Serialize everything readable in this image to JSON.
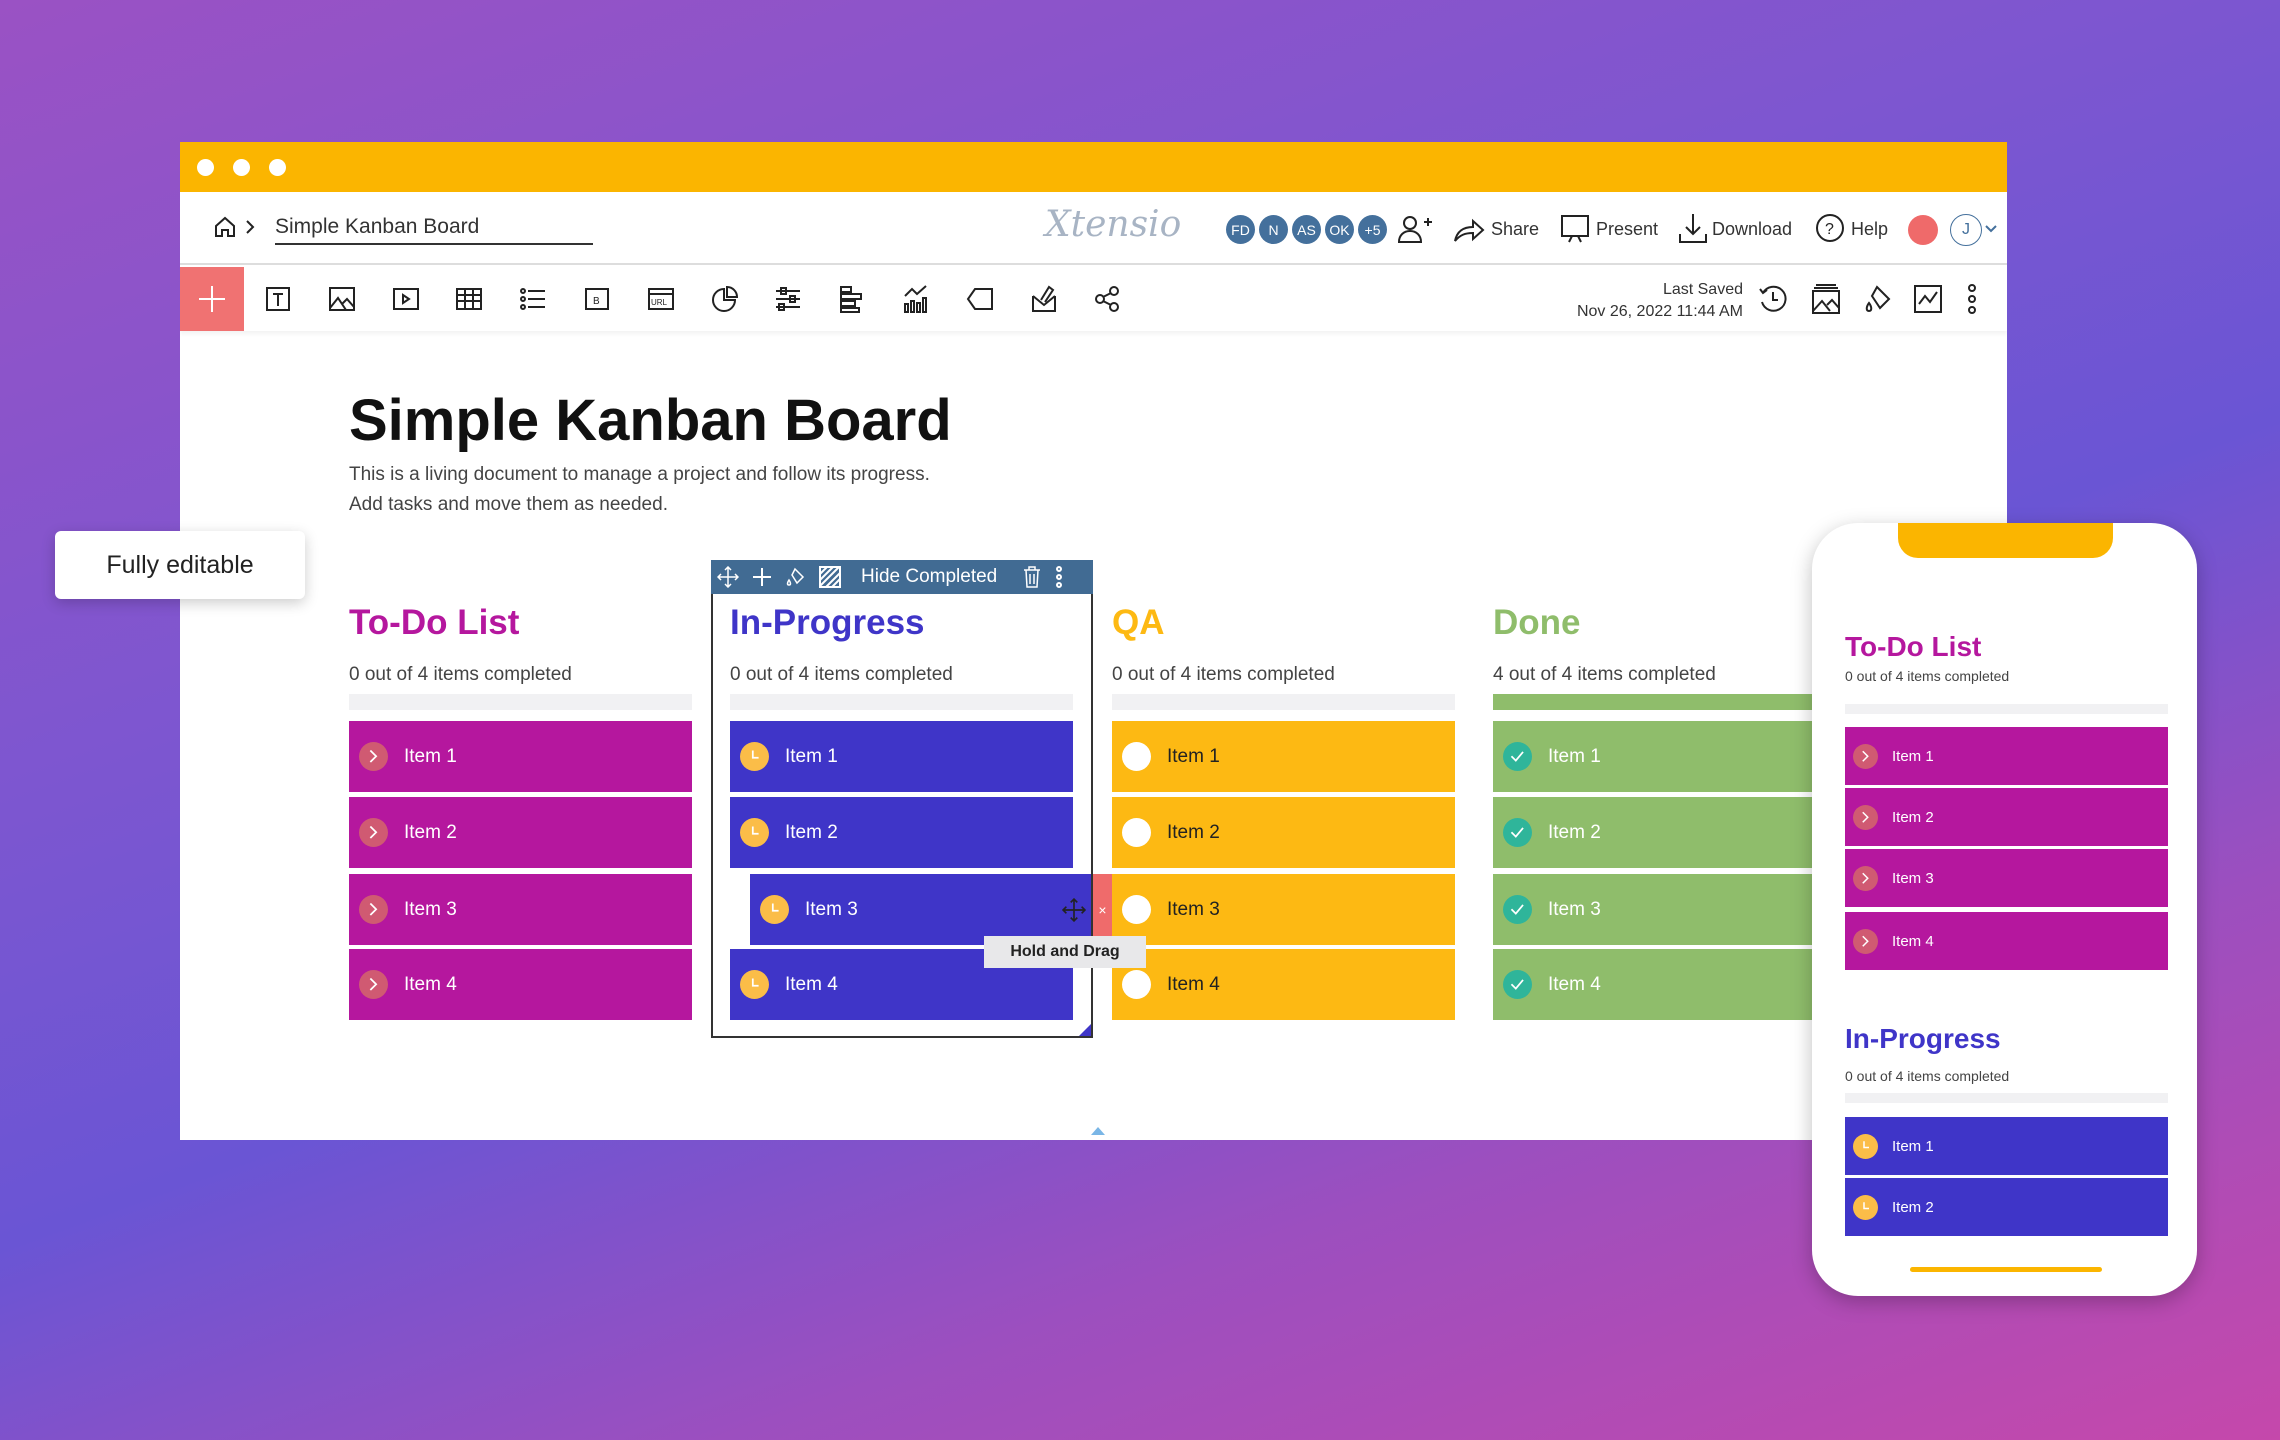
{
  "colors": {
    "todo": "#b5179e",
    "inprogress": "#3f35c8",
    "qa": "#fdb913",
    "done": "#8fbd6b",
    "accent": "#fbb500",
    "plus": "#f07272"
  },
  "header": {
    "breadcrumb": "Simple Kanban Board",
    "logo": "Xtensio",
    "avatars": [
      "FD",
      "N",
      "AS",
      "OK",
      "+5"
    ],
    "share": "Share",
    "present": "Present",
    "download": "Download",
    "help": "Help",
    "user_initial": "J"
  },
  "toolbar": {
    "last_saved_label": "Last Saved",
    "last_saved_time": "Nov 26, 2022 11:44 AM",
    "icons": [
      "text-icon",
      "image-icon",
      "video-icon",
      "table-icon",
      "list-icon",
      "button-icon",
      "url-icon",
      "pie-chart-icon",
      "sliders-icon",
      "bar-chart-icon",
      "line-chart-icon",
      "tag-icon",
      "signature-icon",
      "share-network-icon"
    ]
  },
  "page": {
    "title": "Simple Kanban Board",
    "desc1": "This is a living document to manage a project and follow its progress.",
    "desc2": "Add tasks and move them as needed."
  },
  "badge": "Fully editable",
  "column_toolbar": {
    "hide_completed": "Hide Completed"
  },
  "tooltip": "Hold and Drag",
  "columns": [
    {
      "title": "To-Do List",
      "subtitle": "0 out of 4 items completed",
      "progress": 0,
      "status": "todo",
      "items": [
        "Item 1",
        "Item 2",
        "Item 3",
        "Item 4"
      ]
    },
    {
      "title": "In-Progress",
      "subtitle": "0 out of 4 items completed",
      "progress": 0,
      "status": "inprogress",
      "items": [
        "Item 1",
        "Item 2",
        "Item 3",
        "Item 4"
      ]
    },
    {
      "title": "QA",
      "subtitle": "0 out of 4 items completed",
      "progress": 0,
      "status": "qa",
      "items": [
        "Item 1",
        "Item 2",
        "Item 3",
        "Item 4"
      ]
    },
    {
      "title": "Done",
      "subtitle": "4 out of 4 items completed",
      "progress": 1,
      "status": "done",
      "items": [
        "Item 1",
        "Item 2",
        "Item 3",
        "Item 4"
      ]
    }
  ],
  "phone": {
    "columns": [
      {
        "title": "To-Do List",
        "subtitle": "0 out of 4 items completed",
        "status": "todo",
        "items": [
          "Item 1",
          "Item 2",
          "Item 3",
          "Item 4"
        ]
      },
      {
        "title": "In-Progress",
        "subtitle": "0 out of 4 items completed",
        "status": "inprogress",
        "items": [
          "Item 1",
          "Item 2"
        ]
      }
    ]
  }
}
